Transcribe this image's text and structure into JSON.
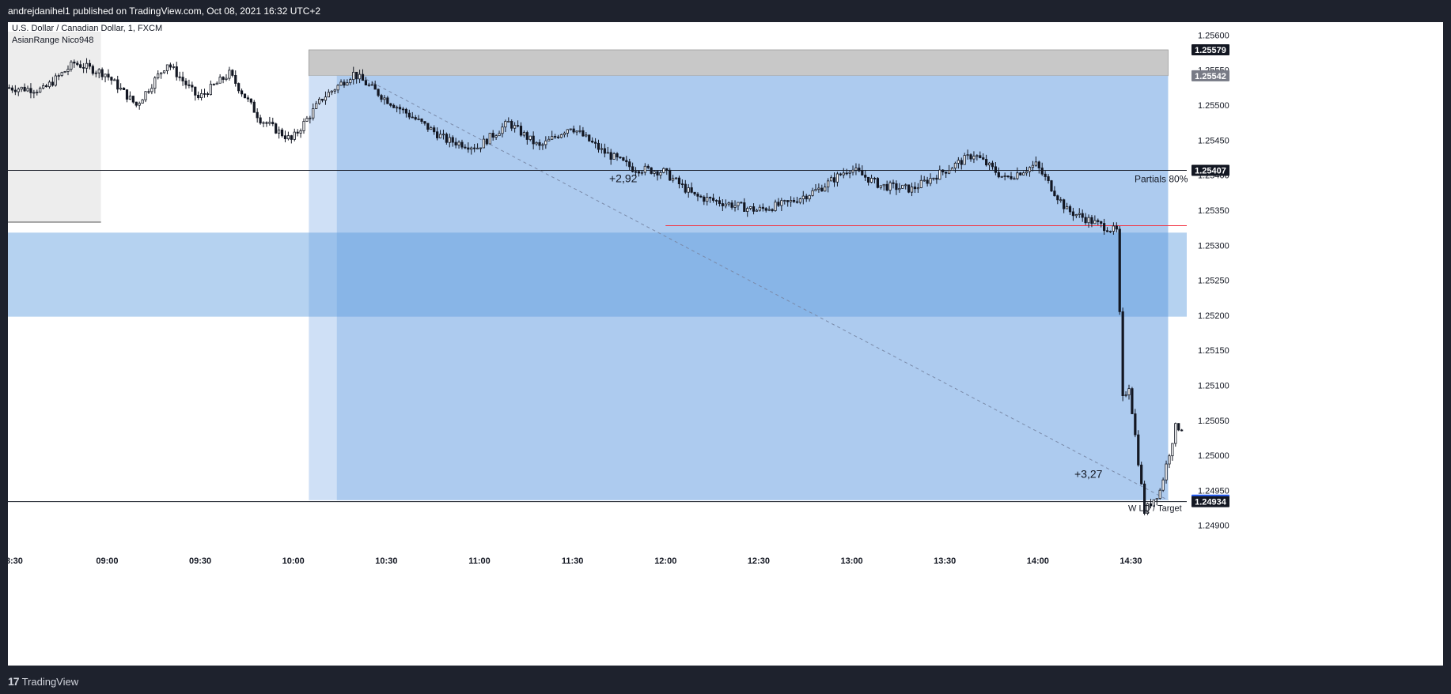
{
  "header": {
    "published_text": "andrejdanihel1 published on TradingView.com, Oct 08, 2021 16:32 UTC+2"
  },
  "footer": {
    "brand": "TradingView",
    "logo_icon": "tradingview-logo-icon"
  },
  "chart_data": {
    "type": "candlestick",
    "symbol_title": "U.S. Dollar / Canadian Dollar, 1, FXCM",
    "indicator_label": "AsianRange Nico948",
    "x_ticks": [
      "8:30",
      "09:00",
      "09:30",
      "10:00",
      "10:30",
      "11:00",
      "11:30",
      "12:00",
      "12:30",
      "13:00",
      "13:30",
      "14:00",
      "14:30"
    ],
    "x_range": [
      "08:28",
      "14:48"
    ],
    "y_ticks": [
      "1.25600",
      "1.25550",
      "1.25500",
      "1.25450",
      "1.25400",
      "1.25350",
      "1.25300",
      "1.25250",
      "1.25200",
      "1.25150",
      "1.25100",
      "1.25050",
      "1.25000",
      "1.24950",
      "1.24900"
    ],
    "y_range": [
      1.24885,
      1.25605
    ],
    "price_labels": [
      {
        "value": "1.25579",
        "color": "#131722"
      },
      {
        "value": "1.25542",
        "color": "#787b86"
      },
      {
        "value": "1.25407",
        "color": "#131722"
      },
      {
        "value": "1.24936",
        "color": "#2962ff"
      },
      {
        "value": "1.24934",
        "color": "#131722"
      }
    ],
    "annotations": [
      {
        "text": "Partials 80%"
      },
      {
        "text": "+2,92"
      },
      {
        "text": "+3,27"
      },
      {
        "text": "W LQ / Target"
      }
    ],
    "close_series": [
      {
        "t": "08:28",
        "v": 1.25525
      },
      {
        "t": "08:40",
        "v": 1.25522
      },
      {
        "t": "08:50",
        "v": 1.2556
      },
      {
        "t": "09:00",
        "v": 1.25545
      },
      {
        "t": "09:10",
        "v": 1.255
      },
      {
        "t": "09:20",
        "v": 1.2556
      },
      {
        "t": "09:30",
        "v": 1.2551
      },
      {
        "t": "09:40",
        "v": 1.25545
      },
      {
        "t": "09:50",
        "v": 1.2548
      },
      {
        "t": "10:00",
        "v": 1.2545
      },
      {
        "t": "10:10",
        "v": 1.2551
      },
      {
        "t": "10:20",
        "v": 1.25545
      },
      {
        "t": "10:30",
        "v": 1.2551
      },
      {
        "t": "10:40",
        "v": 1.2548
      },
      {
        "t": "10:50",
        "v": 1.2545
      },
      {
        "t": "11:00",
        "v": 1.2544
      },
      {
        "t": "11:10",
        "v": 1.25475
      },
      {
        "t": "11:20",
        "v": 1.2544
      },
      {
        "t": "11:30",
        "v": 1.2547
      },
      {
        "t": "11:40",
        "v": 1.25435
      },
      {
        "t": "11:50",
        "v": 1.2541
      },
      {
        "t": "12:00",
        "v": 1.25405
      },
      {
        "t": "12:10",
        "v": 1.2537
      },
      {
        "t": "12:20",
        "v": 1.2536
      },
      {
        "t": "12:30",
        "v": 1.2535
      },
      {
        "t": "12:40",
        "v": 1.2536
      },
      {
        "t": "12:50",
        "v": 1.2538
      },
      {
        "t": "13:00",
        "v": 1.2541
      },
      {
        "t": "13:10",
        "v": 1.25385
      },
      {
        "t": "13:20",
        "v": 1.2538
      },
      {
        "t": "13:30",
        "v": 1.25405
      },
      {
        "t": "13:40",
        "v": 1.2543
      },
      {
        "t": "13:50",
        "v": 1.25395
      },
      {
        "t": "14:00",
        "v": 1.25415
      },
      {
        "t": "14:10",
        "v": 1.2535
      },
      {
        "t": "14:20",
        "v": 1.2533
      },
      {
        "t": "14:26",
        "v": 1.2532
      },
      {
        "t": "14:28",
        "v": 1.2508
      },
      {
        "t": "14:30",
        "v": 1.251
      },
      {
        "t": "14:35",
        "v": 1.2492
      },
      {
        "t": "14:40",
        "v": 1.2495
      },
      {
        "t": "14:45",
        "v": 1.2504
      }
    ],
    "zones": [
      {
        "name": "asian-range",
        "from": "08:28",
        "to": "08:58",
        "top": 1.25605,
        "bottom": 1.25333
      },
      {
        "name": "stop-zone",
        "from": "10:05",
        "to": "14:42",
        "top": 1.25579,
        "bottom": 1.25542
      },
      {
        "name": "profit-zone-light",
        "from": "10:05",
        "to": "10:14",
        "top": 1.25542,
        "bottom": 1.24936
      },
      {
        "name": "profit-zone",
        "from": "10:14",
        "to": "14:42",
        "top": 1.25542,
        "bottom": 1.24936
      },
      {
        "name": "fvg-zone",
        "from": "08:28",
        "to": "14:48",
        "top": 1.25318,
        "bottom": 1.25198
      }
    ],
    "lines": [
      {
        "name": "partials-line",
        "value": 1.25407
      },
      {
        "name": "target-line",
        "value": 1.24934
      },
      {
        "name": "low-line",
        "from": "12:00",
        "to": "14:48",
        "value": 1.25328,
        "color": "#f23645"
      },
      {
        "name": "asian-low-line",
        "from": "08:28",
        "to": "08:58",
        "value": 1.25333
      }
    ],
    "trend_line": {
      "from": {
        "t": "10:20",
        "v": 1.25545
      },
      "to": {
        "t": "14:42",
        "v": 1.24936
      }
    },
    "grid": false
  }
}
